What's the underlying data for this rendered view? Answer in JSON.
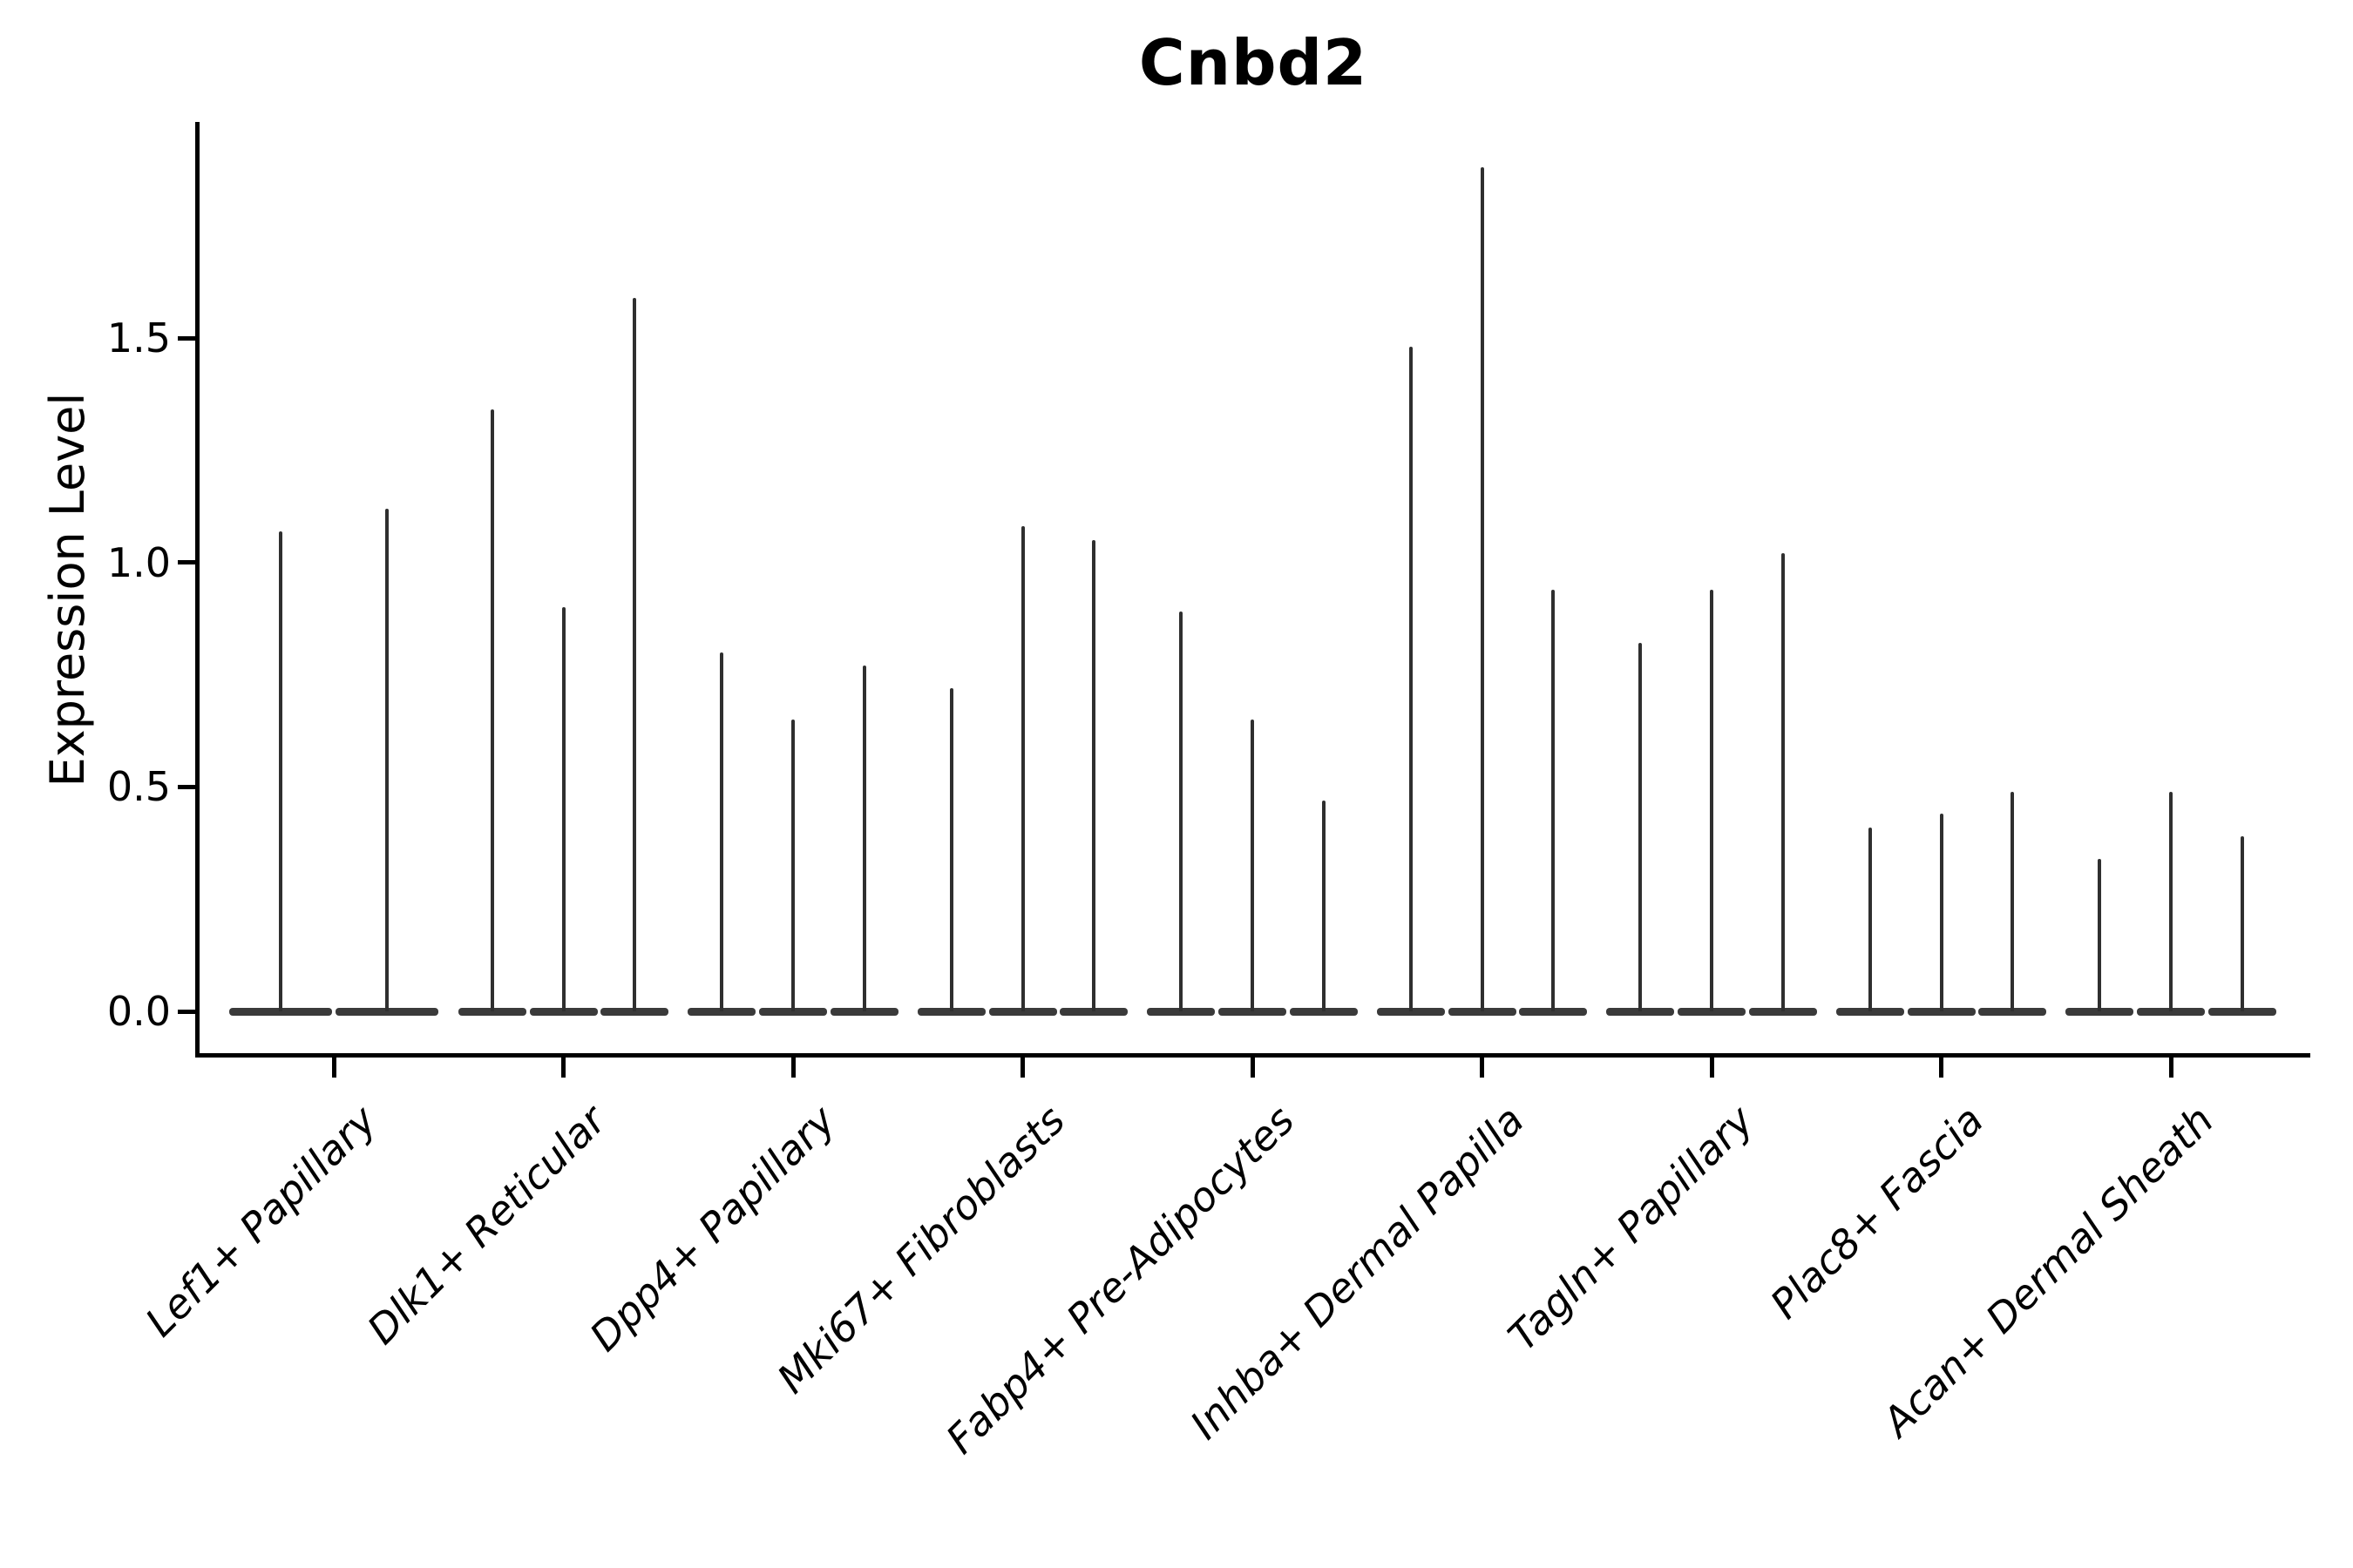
{
  "chart_data": {
    "type": "violin",
    "title": "Cnbd2",
    "xlabel": "",
    "ylabel": "Expression Level",
    "ylim": [
      -0.12,
      1.98
    ],
    "yticks": [
      0.0,
      0.5,
      1.0,
      1.5
    ],
    "ytick_labels": [
      "0.0",
      "0.5",
      "1.0",
      "1.5"
    ],
    "grid": false,
    "legend_position": "none",
    "baseline_value": 0.0,
    "categories": [
      "Lef1+ Papillary",
      "Dlk1+ Reticular",
      "Dpp4+ Papillary",
      "Mki67+ Fibroblasts",
      "Fabp4+ Pre-Adipocytes",
      "Inhba+ Dermal Papilla",
      "Tagln+ Papillary",
      "Plac8+ Fascia",
      "Acan+ Dermal Sheath"
    ],
    "groups": [
      {
        "label": "Lef1+ Papillary",
        "violin_max": [
          1.07,
          1.12
        ]
      },
      {
        "label": "Dlk1+ Reticular",
        "violin_max": [
          1.34,
          0.9,
          1.59
        ]
      },
      {
        "label": "Dpp4+ Papillary",
        "violin_max": [
          0.8,
          0.65,
          0.77
        ]
      },
      {
        "label": "Mki67+ Fibroblasts",
        "violin_max": [
          0.72,
          1.08,
          1.05
        ]
      },
      {
        "label": "Fabp4+ Pre-Adipocytes",
        "violin_max": [
          0.89,
          0.65,
          0.47
        ]
      },
      {
        "label": "Inhba+ Dermal Papilla",
        "violin_max": [
          1.48,
          1.88,
          0.94
        ]
      },
      {
        "label": "Tagln+ Papillary",
        "violin_max": [
          0.82,
          0.94,
          1.02
        ]
      },
      {
        "label": "Plac8+ Fascia",
        "violin_max": [
          0.41,
          0.44,
          0.49
        ]
      },
      {
        "label": "Acan+ Dermal Sheath",
        "violin_max": [
          0.34,
          0.49,
          0.39
        ]
      }
    ]
  },
  "colors": {
    "spike": "#2f2f2f",
    "violin_base": "#3a3a3a",
    "axis": "#000000",
    "background": "#ffffff"
  }
}
